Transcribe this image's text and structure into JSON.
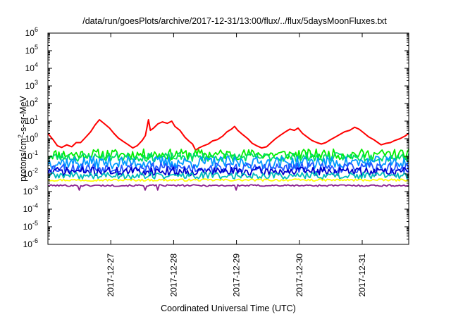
{
  "chart_data": {
    "type": "line",
    "title": "/data/run/goesPlots/archive/2017-12-31/13:00/flux/../flux/5daysMoonFluxes.txt",
    "xlabel": "Coordinated Universal Time (UTC)",
    "ylabel_base": "protons/cm",
    "ylabel_sup": "2",
    "ylabel_tail": "-s-sr-MeV",
    "yscale": "log",
    "ylim": [
      1e-06,
      1000000.0
    ],
    "xlim": [
      0,
      5.74
    ],
    "grid": false,
    "legend": "none",
    "y_ticks": [
      {
        "base": "10",
        "exp": "-6",
        "value": -6
      },
      {
        "base": "10",
        "exp": "-5",
        "value": -5
      },
      {
        "base": "10",
        "exp": "-4",
        "value": -4
      },
      {
        "base": "10",
        "exp": "-3",
        "value": -3
      },
      {
        "base": "10",
        "exp": "-2",
        "value": -2
      },
      {
        "base": "10",
        "exp": "-1",
        "value": -1
      },
      {
        "base": "10",
        "exp": "0",
        "value": 0
      },
      {
        "base": "10",
        "exp": "1",
        "value": 1
      },
      {
        "base": "10",
        "exp": "2",
        "value": 2
      },
      {
        "base": "10",
        "exp": "3",
        "value": 3
      },
      {
        "base": "10",
        "exp": "4",
        "value": 4
      },
      {
        "base": "10",
        "exp": "5",
        "value": 5
      },
      {
        "base": "10",
        "exp": "6",
        "value": 6
      }
    ],
    "x_ticks": [
      {
        "label": "2017-12-27",
        "value": 1
      },
      {
        "label": "2017-12-28",
        "value": 2
      },
      {
        "label": "2017-12-29",
        "value": 3
      },
      {
        "label": "2017-12-30",
        "value": 4
      },
      {
        "label": "2017-12-31",
        "value": 5
      }
    ],
    "series": [
      {
        "color": "#ff0000",
        "points": [
          [
            0.0,
            2.0
          ],
          [
            0.08,
            0.9
          ],
          [
            0.15,
            0.4
          ],
          [
            0.22,
            0.32
          ],
          [
            0.3,
            0.45
          ],
          [
            0.38,
            0.35
          ],
          [
            0.45,
            0.6
          ],
          [
            0.52,
            0.6
          ],
          [
            0.6,
            1.2
          ],
          [
            0.68,
            2.5
          ],
          [
            0.75,
            6.0
          ],
          [
            0.82,
            12.0
          ],
          [
            0.9,
            7.0
          ],
          [
            0.98,
            4.0
          ],
          [
            1.05,
            2.0
          ],
          [
            1.12,
            1.1
          ],
          [
            1.2,
            0.7
          ],
          [
            1.28,
            0.45
          ],
          [
            1.35,
            0.3
          ],
          [
            1.42,
            0.4
          ],
          [
            1.5,
            0.8
          ],
          [
            1.55,
            1.5
          ],
          [
            1.6,
            12.0
          ],
          [
            1.63,
            3.0
          ],
          [
            1.68,
            4.0
          ],
          [
            1.75,
            7.0
          ],
          [
            1.82,
            9.0
          ],
          [
            1.9,
            7.5
          ],
          [
            1.97,
            10.0
          ],
          [
            2.02,
            5.0
          ],
          [
            2.1,
            3.0
          ],
          [
            2.18,
            1.2
          ],
          [
            2.25,
            0.7
          ],
          [
            2.3,
            0.5
          ],
          [
            2.35,
            0.22
          ],
          [
            2.4,
            0.3
          ],
          [
            2.48,
            0.4
          ],
          [
            2.55,
            0.5
          ],
          [
            2.62,
            0.75
          ],
          [
            2.7,
            0.9
          ],
          [
            2.78,
            1.4
          ],
          [
            2.85,
            2.5
          ],
          [
            2.92,
            3.5
          ],
          [
            2.97,
            5.0
          ],
          [
            3.02,
            3.0
          ],
          [
            3.1,
            1.7
          ],
          [
            3.18,
            1.0
          ],
          [
            3.25,
            0.55
          ],
          [
            3.32,
            0.4
          ],
          [
            3.4,
            0.3
          ],
          [
            3.48,
            0.35
          ],
          [
            3.55,
            0.6
          ],
          [
            3.62,
            1.0
          ],
          [
            3.7,
            1.6
          ],
          [
            3.78,
            2.5
          ],
          [
            3.85,
            3.5
          ],
          [
            3.92,
            3.0
          ],
          [
            3.98,
            4.0
          ],
          [
            4.05,
            2.0
          ],
          [
            4.12,
            1.3
          ],
          [
            4.2,
            0.8
          ],
          [
            4.28,
            0.6
          ],
          [
            4.35,
            0.5
          ],
          [
            4.42,
            0.6
          ],
          [
            4.5,
            0.9
          ],
          [
            4.58,
            1.3
          ],
          [
            4.65,
            1.8
          ],
          [
            4.72,
            2.5
          ],
          [
            4.8,
            3.0
          ],
          [
            4.88,
            4.5
          ],
          [
            4.95,
            3.5
          ],
          [
            5.02,
            2.2
          ],
          [
            5.1,
            1.3
          ],
          [
            5.18,
            0.9
          ],
          [
            5.25,
            0.6
          ],
          [
            5.3,
            0.45
          ],
          [
            5.38,
            0.55
          ],
          [
            5.45,
            0.6
          ],
          [
            5.52,
            0.8
          ],
          [
            5.6,
            1.0
          ],
          [
            5.68,
            1.4
          ],
          [
            5.74,
            2.0
          ]
        ]
      },
      {
        "color": "#00ee00",
        "base": 0.13,
        "amp": 0.3,
        "seed": 11
      },
      {
        "color": "#00dd66",
        "base": 0.09,
        "amp": 0.25,
        "seed": 23
      },
      {
        "color": "#0099ff",
        "base": 0.045,
        "amp": 0.35,
        "seed": 37
      },
      {
        "color": "#2255ff",
        "base": 0.022,
        "amp": 0.3,
        "seed": 53
      },
      {
        "color": "#0000cc",
        "base": 0.014,
        "amp": 0.25,
        "seed": 71
      },
      {
        "color": "#00bbbb",
        "base": 0.008,
        "amp": 0.2,
        "seed": 89
      },
      {
        "color": "#ffff00",
        "base": 0.0045,
        "amp": 0.06,
        "seed": 97
      },
      {
        "color": "#8b2090",
        "base": 0.0022,
        "amp": 0.05,
        "seed": 101
      }
    ]
  }
}
